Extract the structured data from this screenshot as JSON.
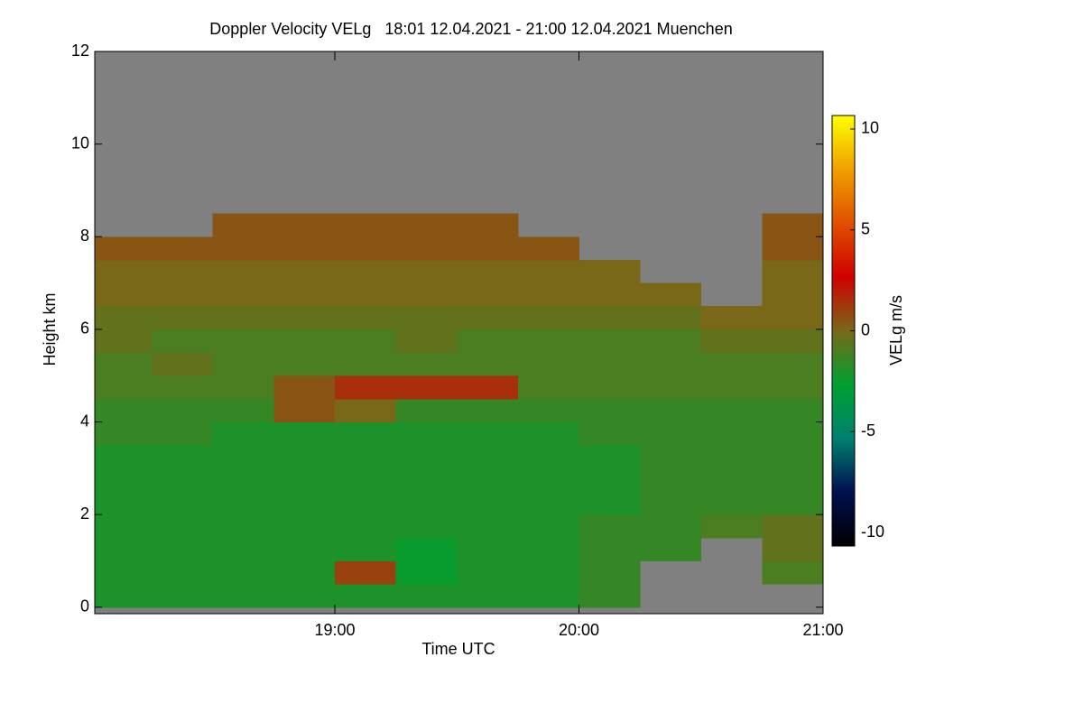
{
  "chart_data": {
    "type": "heatmap",
    "title": "Doppler Velocity VELg   18:01 12.04.2021 - 21:00 12.04.2021 Muenchen",
    "xlabel": "Time UTC",
    "ylabel": "Height km",
    "colorbar_label": "VELg m/s",
    "xlim": [
      18.0167,
      21.0
    ],
    "xticks": [
      {
        "value": 19,
        "label": "19:00"
      },
      {
        "value": 20,
        "label": "20:00"
      },
      {
        "value": 21,
        "label": "21:00"
      }
    ],
    "ylim": [
      -0.14,
      12
    ],
    "yticks": [
      0,
      2,
      4,
      6,
      8,
      10,
      12
    ],
    "clim": [
      -10.67,
      10.67
    ],
    "cticks": [
      -10,
      -5,
      0,
      5,
      10
    ],
    "colormap": [
      "#000000",
      "#001050",
      "#008070",
      "#00a030",
      "#786818",
      "#d00000",
      "#e05000",
      "#f0a000",
      "#ffff00"
    ],
    "background": "#808080",
    "x": [
      18.125,
      18.375,
      18.625,
      18.875,
      19.125,
      19.375,
      19.625,
      19.875,
      20.125,
      20.375,
      20.625,
      20.875
    ],
    "y": [
      0.25,
      0.75,
      1.25,
      1.75,
      2.25,
      2.75,
      3.25,
      3.75,
      4.25,
      4.75,
      5.25,
      5.75,
      6.25,
      6.75,
      7.25,
      7.75,
      8.25,
      8.75,
      9.25,
      9.75,
      10.25,
      10.75,
      11.25,
      11.75
    ],
    "z": [
      [
        -2,
        -2,
        -2,
        -2,
        -2,
        -2,
        -2,
        -2,
        -1.5,
        null,
        null,
        null
      ],
      [
        -2,
        -2,
        -2,
        -2,
        1,
        -2.5,
        -2,
        -2,
        -1.5,
        null,
        null,
        -1
      ],
      [
        -2,
        -2,
        -2,
        -2,
        -2,
        -2.5,
        -2,
        -2,
        -1.5,
        -1.5,
        null,
        -0.5
      ],
      [
        -2,
        -2,
        -2,
        -2,
        -2,
        -2,
        -2,
        -2,
        -1.5,
        -1.5,
        -1,
        -0.5
      ],
      [
        -2,
        -2,
        -2,
        -2,
        -2,
        -2,
        -2,
        -2,
        -2,
        -1.5,
        -1.5,
        -1.5
      ],
      [
        -2,
        -2,
        -2,
        -2,
        -2,
        -2,
        -2,
        -2,
        -2,
        -1.5,
        -1.5,
        -1.5
      ],
      [
        -2,
        -2,
        -2,
        -2,
        -2,
        -2,
        -2,
        -2,
        -2,
        -1.5,
        -1.5,
        -1.5
      ],
      [
        -1.5,
        -1.5,
        -2,
        -2,
        -2,
        -2,
        -2,
        -2,
        -1.5,
        -1.5,
        -1.5,
        -1.5
      ],
      [
        -1.5,
        -1.5,
        -1.5,
        0.5,
        0,
        -1.5,
        -1.5,
        -1.5,
        -1.5,
        -1.5,
        -1.5,
        -1.5
      ],
      [
        -1,
        -1,
        -1,
        0.5,
        1.5,
        1.5,
        1.5,
        -1,
        -1,
        -1,
        -1,
        -1
      ],
      [
        -1,
        -0.5,
        -1,
        -1,
        -1,
        -1,
        -1,
        -1,
        -1,
        -1,
        -1,
        -1
      ],
      [
        -0.5,
        -1,
        -1,
        -1,
        -1,
        -0.5,
        -1,
        -1,
        -1,
        -1,
        -0.5,
        -0.5
      ],
      [
        -0.5,
        -0.5,
        -0.5,
        -0.5,
        -0.5,
        -0.5,
        -0.5,
        -0.5,
        -0.5,
        -0.5,
        0,
        0
      ],
      [
        0,
        0,
        0,
        0,
        0,
        0,
        0,
        0,
        0,
        0,
        null,
        0
      ],
      [
        0,
        0,
        0,
        0,
        0,
        0,
        0,
        0,
        0,
        null,
        null,
        0
      ],
      [
        0.5,
        0.5,
        0.5,
        0.5,
        0.5,
        0.5,
        0.5,
        0.5,
        null,
        null,
        null,
        0.5
      ],
      [
        null,
        null,
        0.5,
        0.5,
        0.5,
        0.5,
        0.5,
        null,
        null,
        null,
        null,
        0.5
      ],
      [
        null,
        null,
        null,
        null,
        null,
        null,
        null,
        null,
        null,
        null,
        null,
        null
      ],
      [
        null,
        null,
        null,
        null,
        null,
        null,
        null,
        null,
        null,
        null,
        null,
        null
      ],
      [
        null,
        null,
        null,
        null,
        null,
        null,
        null,
        null,
        null,
        null,
        null,
        null
      ],
      [
        null,
        null,
        null,
        null,
        null,
        null,
        null,
        null,
        null,
        null,
        null,
        null
      ],
      [
        null,
        null,
        null,
        null,
        null,
        null,
        null,
        null,
        null,
        null,
        null,
        null
      ],
      [
        null,
        null,
        null,
        null,
        null,
        null,
        null,
        null,
        null,
        null,
        null,
        null
      ],
      [
        null,
        null,
        null,
        null,
        null,
        null,
        null,
        null,
        null,
        null,
        null,
        null
      ]
    ]
  }
}
